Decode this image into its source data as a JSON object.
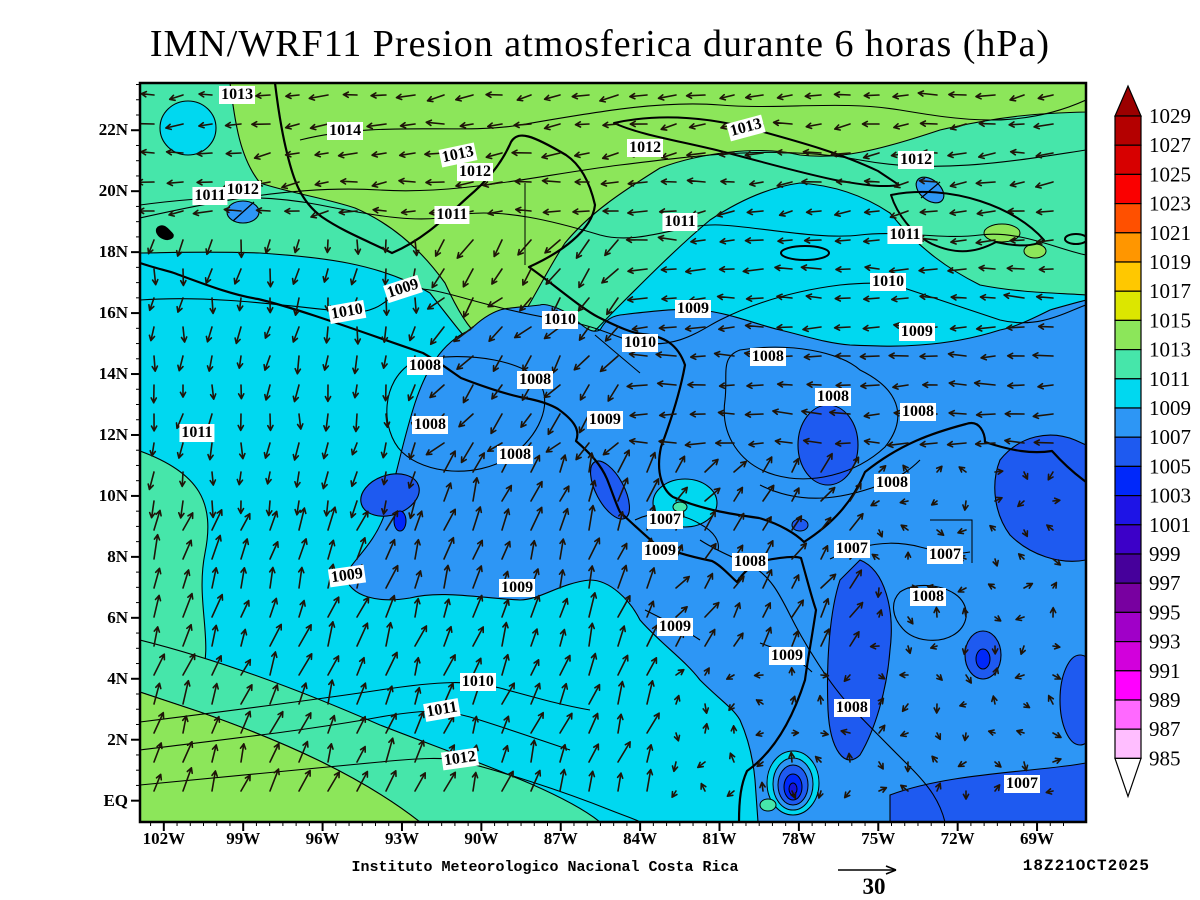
{
  "title": "IMN/WRF11 Presion atmosferica durante 6 horas (hPa)",
  "footer": {
    "institute": "Instituto Meteorologico Nacional Costa Rica",
    "reference_vector": "30",
    "timestamp": "18Z21OCT2025"
  },
  "chart_data": {
    "type": "heatmap",
    "field": "atmospheric pressure (hPa), filled contours with wind vectors",
    "title": "IMN/WRF11 Presion atmosferica durante 6 horas (hPa)",
    "contour_interval_hPa": 1,
    "x_axis": {
      "deg_left": 102.9,
      "deg_right": 67.15,
      "ticks": [
        {
          "label": "102W",
          "deg": 102
        },
        {
          "label": "99W",
          "deg": 99
        },
        {
          "label": "96W",
          "deg": 96
        },
        {
          "label": "93W",
          "deg": 93
        },
        {
          "label": "90W",
          "deg": 90
        },
        {
          "label": "87W",
          "deg": 87
        },
        {
          "label": "84W",
          "deg": 84
        },
        {
          "label": "81W",
          "deg": 81
        },
        {
          "label": "78W",
          "deg": 78
        },
        {
          "label": "75W",
          "deg": 75
        },
        {
          "label": "72W",
          "deg": 72
        },
        {
          "label": "69W",
          "deg": 69
        }
      ]
    },
    "y_axis": {
      "deg_top": 23.55,
      "deg_bottom": -0.7,
      "ticks": [
        {
          "label": "22N",
          "deg": 22
        },
        {
          "label": "20N",
          "deg": 20
        },
        {
          "label": "18N",
          "deg": 18
        },
        {
          "label": "16N",
          "deg": 16
        },
        {
          "label": "14N",
          "deg": 14
        },
        {
          "label": "12N",
          "deg": 12
        },
        {
          "label": "10N",
          "deg": 10
        },
        {
          "label": "8N",
          "deg": 8
        },
        {
          "label": "6N",
          "deg": 6
        },
        {
          "label": "4N",
          "deg": 4
        },
        {
          "label": "2N",
          "deg": 2
        },
        {
          "label": "EQ",
          "deg": 0
        }
      ]
    },
    "colorbar": {
      "levels": [
        1029,
        1027,
        1025,
        1023,
        1021,
        1019,
        1017,
        1015,
        1013,
        1011,
        1009,
        1007,
        1005,
        1003,
        1001,
        999,
        997,
        995,
        993,
        991,
        989,
        987,
        985
      ],
      "box_colors": [
        "#B40000",
        "#D70000",
        "#FA0000",
        "#FF5000",
        "#FF9600",
        "#FFC800",
        "#DCE600",
        "#8CE65A",
        "#46E6AA",
        "#00D8F0",
        "#2D96F5",
        "#1E5AF0",
        "#0028FA",
        "#1E14E6",
        "#3C00C8",
        "#46009B",
        "#7800A0",
        "#A000C8",
        "#D200DC",
        "#FF00FF",
        "#FF69FF",
        "#FFBEFF"
      ],
      "over_color": "#9B0000",
      "under_color": "#FFFFFF"
    },
    "wind": {
      "reference_value": 30
    },
    "contour_labels": [
      {
        "v": "1013",
        "lon": 99.23,
        "lat": 23.16
      },
      {
        "v": "1014",
        "lon": 95.15,
        "lat": 21.97
      },
      {
        "v": "1013",
        "lon": 90.88,
        "lat": 21.19,
        "rot": -12
      },
      {
        "v": "1012",
        "lon": 90.24,
        "lat": 20.63
      },
      {
        "v": "1013",
        "lon": 80.0,
        "lat": 22.07,
        "rot": -15
      },
      {
        "v": "1012",
        "lon": 83.81,
        "lat": 21.42
      },
      {
        "v": "1012",
        "lon": 73.57,
        "lat": 21.02
      },
      {
        "v": "1011",
        "lon": 100.25,
        "lat": 19.84
      },
      {
        "v": "1012",
        "lon": 99.01,
        "lat": 20.04
      },
      {
        "v": "1011",
        "lon": 91.11,
        "lat": 19.22
      },
      {
        "v": "1011",
        "lon": 82.49,
        "lat": 18.99
      },
      {
        "v": "1011",
        "lon": 73.99,
        "lat": 18.56
      },
      {
        "v": "1009",
        "lon": 92.96,
        "lat": 16.79,
        "rot": -18
      },
      {
        "v": "1010",
        "lon": 95.08,
        "lat": 16.04,
        "rot": -10
      },
      {
        "v": "1010",
        "lon": 87.03,
        "lat": 15.77
      },
      {
        "v": "1010",
        "lon": 84.0,
        "lat": 15.02
      },
      {
        "v": "1009",
        "lon": 82.0,
        "lat": 16.13
      },
      {
        "v": "1010",
        "lon": 74.63,
        "lat": 17.02
      },
      {
        "v": "1009",
        "lon": 73.54,
        "lat": 15.38
      },
      {
        "v": "1008",
        "lon": 92.13,
        "lat": 14.26
      },
      {
        "v": "1008",
        "lon": 87.97,
        "lat": 13.8
      },
      {
        "v": "1008",
        "lon": 79.17,
        "lat": 14.56
      },
      {
        "v": "1008",
        "lon": 76.71,
        "lat": 13.25
      },
      {
        "v": "1008",
        "lon": 73.5,
        "lat": 12.75
      },
      {
        "v": "1011",
        "lon": 100.75,
        "lat": 12.06
      },
      {
        "v": "1008",
        "lon": 91.94,
        "lat": 12.33
      },
      {
        "v": "1009",
        "lon": 85.33,
        "lat": 12.49
      },
      {
        "v": "1008",
        "lon": 88.73,
        "lat": 11.34
      },
      {
        "v": "1008",
        "lon": 74.48,
        "lat": 10.42
      },
      {
        "v": "1007",
        "lon": 83.06,
        "lat": 9.21
      },
      {
        "v": "1009",
        "lon": 83.25,
        "lat": 8.19
      },
      {
        "v": "1008",
        "lon": 79.85,
        "lat": 7.83
      },
      {
        "v": "1007",
        "lon": 76.0,
        "lat": 8.26
      },
      {
        "v": "1007",
        "lon": 72.48,
        "lat": 8.06
      },
      {
        "v": "1008",
        "lon": 73.12,
        "lat": 6.68
      },
      {
        "v": "1009",
        "lon": 82.68,
        "lat": 5.7
      },
      {
        "v": "1009",
        "lon": 95.08,
        "lat": 7.37,
        "rot": -8
      },
      {
        "v": "1009",
        "lon": 88.65,
        "lat": 6.98
      },
      {
        "v": "1009",
        "lon": 78.45,
        "lat": 4.75
      },
      {
        "v": "1010",
        "lon": 90.13,
        "lat": 3.89
      },
      {
        "v": "1011",
        "lon": 91.49,
        "lat": 2.98,
        "rot": -10
      },
      {
        "v": "1008",
        "lon": 76.0,
        "lat": 3.04
      },
      {
        "v": "1012",
        "lon": 90.81,
        "lat": 1.37,
        "rot": -8
      },
      {
        "v": "1007",
        "lon": 69.57,
        "lat": 0.55
      }
    ]
  }
}
